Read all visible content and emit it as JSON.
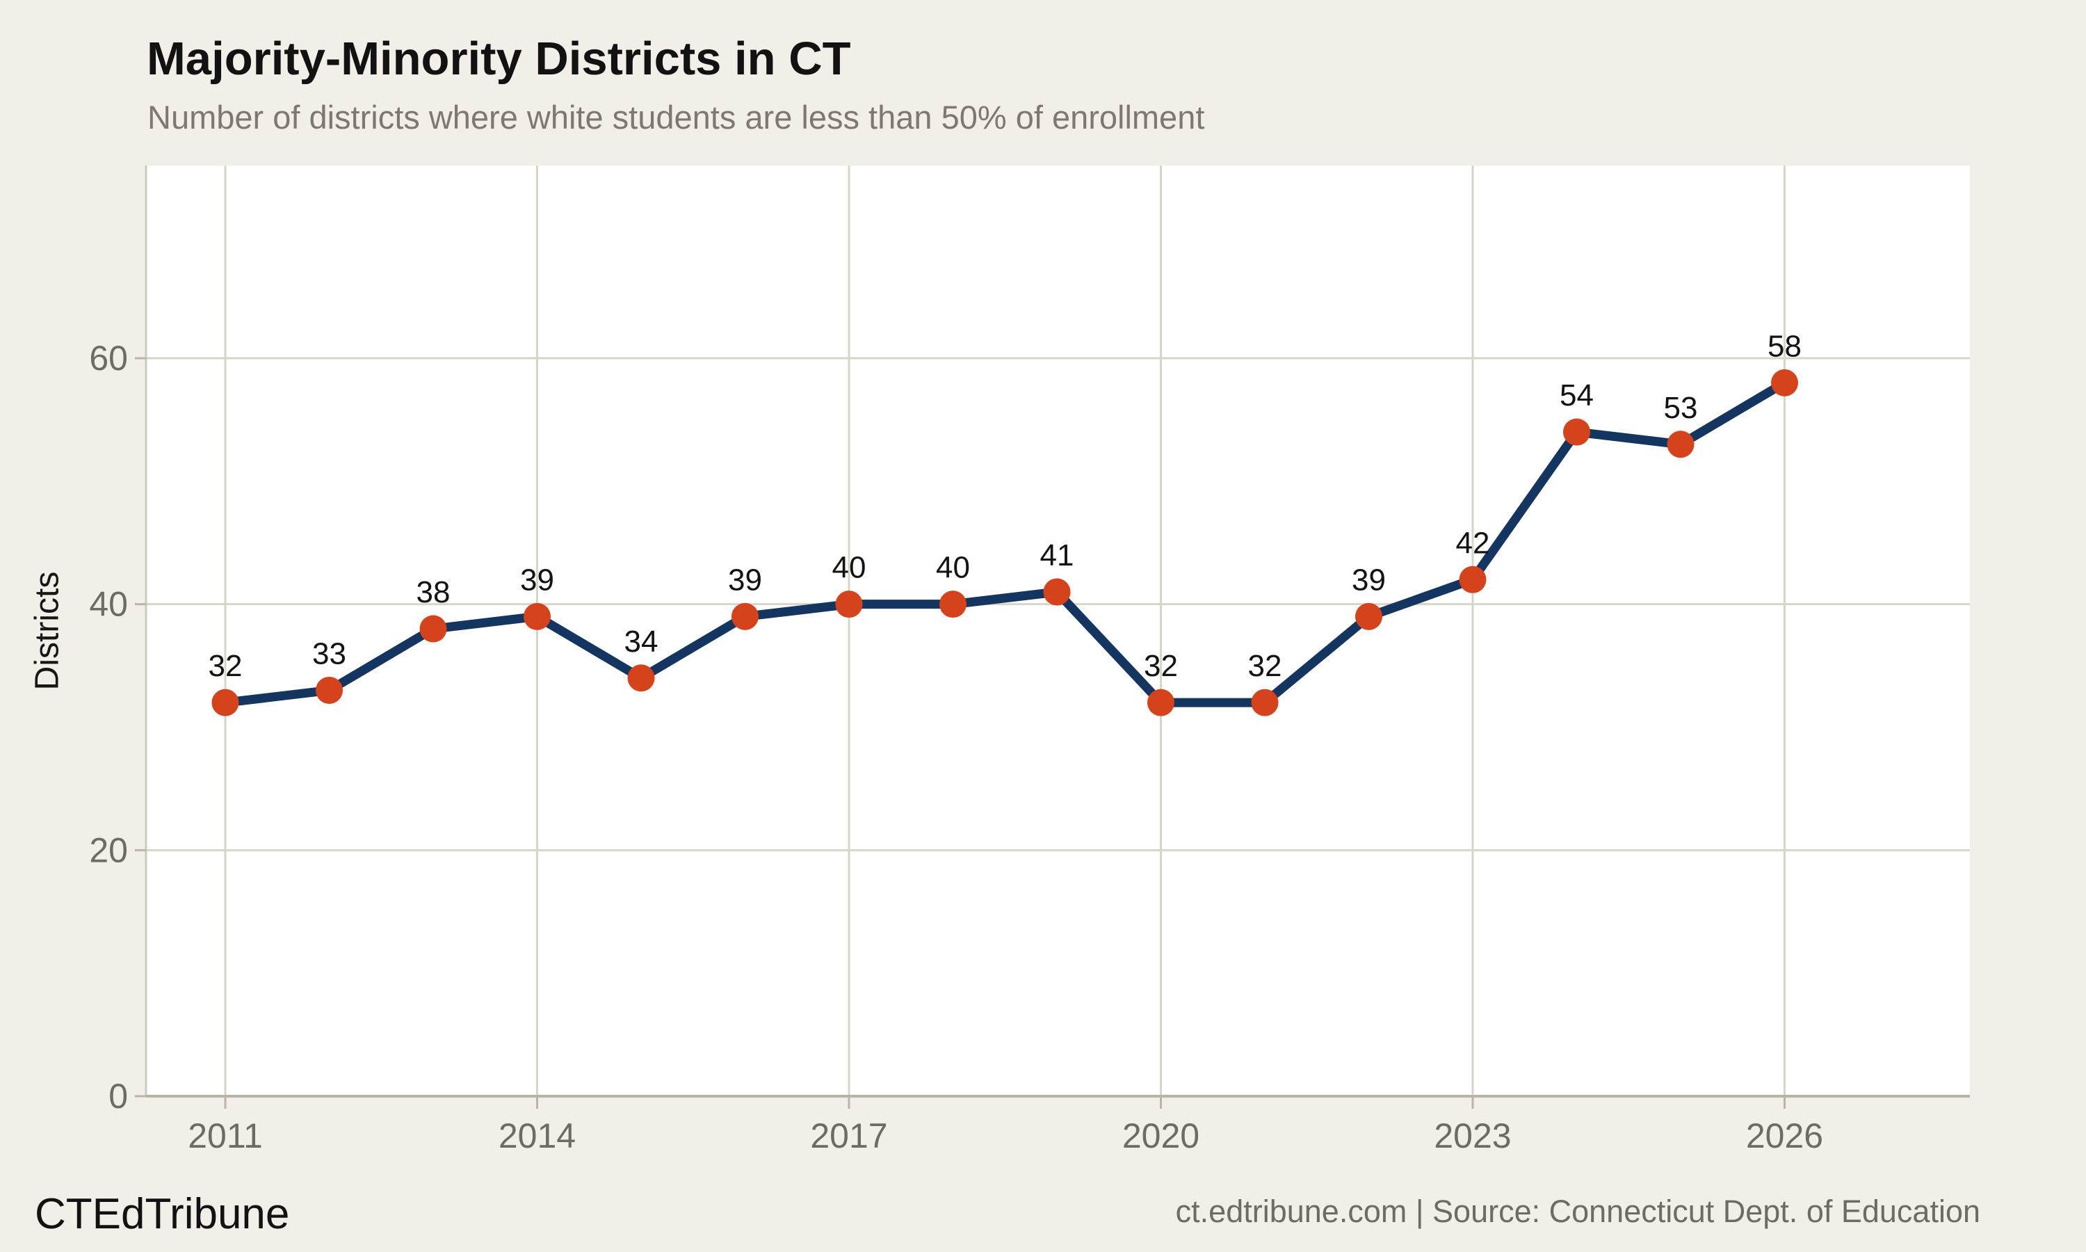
{
  "header": {
    "title": "Majority-Minority Districts in CT",
    "subtitle": "Number of districts where white students are less than 50% of enrollment"
  },
  "footer": {
    "brand": "CTEdTribune",
    "source": "ct.edtribune.com | Source: Connecticut Dept. of Education"
  },
  "chart_data": {
    "type": "line",
    "title": "Majority-Minority Districts in CT",
    "subtitle": "Number of districts where white students are less than 50% of enrollment",
    "xlabel": "",
    "ylabel": "Districts",
    "x": [
      2011,
      2012,
      2013,
      2014,
      2015,
      2016,
      2017,
      2018,
      2019,
      2020,
      2021,
      2022,
      2023,
      2024,
      2025,
      2026
    ],
    "values": [
      32,
      33,
      38,
      39,
      34,
      39,
      40,
      40,
      41,
      32,
      32,
      39,
      42,
      54,
      53,
      58
    ],
    "point_labels": [
      "32",
      "33",
      "38",
      "39",
      "34",
      "39",
      "40",
      "40",
      "41",
      "32",
      "32",
      "39",
      "42",
      "54",
      "53",
      "58"
    ],
    "x_ticks": [
      2011,
      2014,
      2017,
      2020,
      2023,
      2026
    ],
    "y_ticks": [
      0,
      20,
      40,
      60
    ],
    "xlim": [
      2010.2,
      2027.8
    ],
    "ylim": [
      0,
      75.7
    ],
    "grid": true,
    "legend": false,
    "colors": {
      "background": "#f2efe9",
      "plot_background": "#ffffff",
      "gridline": "#d8d4ca",
      "axis": "#b9b4a8",
      "left_spine": "#cdc9bd",
      "line": "#133560",
      "marker": "#d5431d",
      "tick_label": "#6e6a64",
      "data_label": "#131313",
      "title": "#121212",
      "subtitle": "#7d7871",
      "footer_source": "#6e6a64"
    }
  }
}
